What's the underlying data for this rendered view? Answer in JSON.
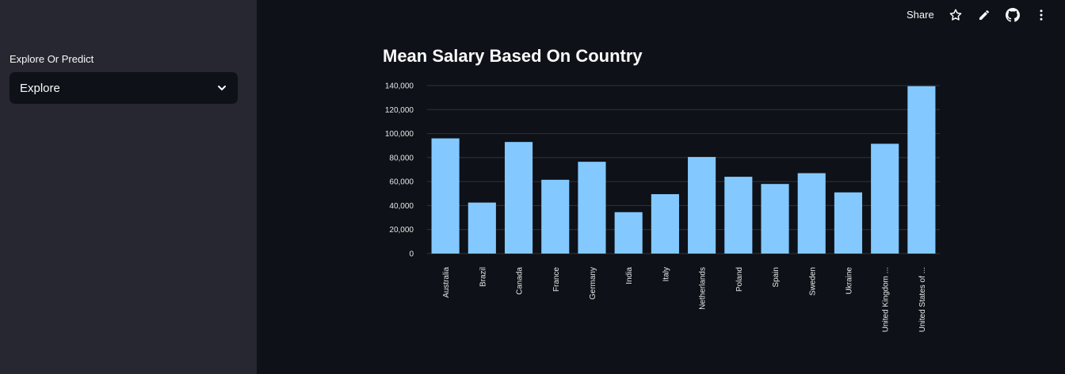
{
  "sidebar": {
    "select_label": "Explore Or Predict",
    "select_value": "Explore"
  },
  "toolbar": {
    "share_label": "Share",
    "icons": [
      "star-icon",
      "pencil-icon",
      "github-icon",
      "more-vertical-icon"
    ]
  },
  "colors": {
    "bar": "#83c9ff",
    "background": "#0e1117",
    "sidebar": "#262730"
  },
  "chart_data": {
    "type": "bar",
    "title": "Mean Salary Based On Country",
    "categories": [
      "Australia",
      "Brazil",
      "Canada",
      "France",
      "Germany",
      "India",
      "Italy",
      "Netherlands",
      "Poland",
      "Spain",
      "Sweden",
      "Ukraine",
      "United Kingdom ...",
      "United States of ..."
    ],
    "values": [
      96000,
      42500,
      93000,
      61500,
      76500,
      34500,
      49500,
      80500,
      64000,
      58000,
      67000,
      51000,
      91500,
      139500
    ],
    "xlabel": "",
    "ylabel": "",
    "ylim": [
      0,
      140000
    ],
    "yticks": [
      0,
      20000,
      40000,
      60000,
      80000,
      100000,
      120000,
      140000
    ],
    "ytick_labels": [
      "0",
      "20,000",
      "40,000",
      "60,000",
      "80,000",
      "100,000",
      "120,000",
      "140,000"
    ],
    "grid": true,
    "legend": "none"
  }
}
